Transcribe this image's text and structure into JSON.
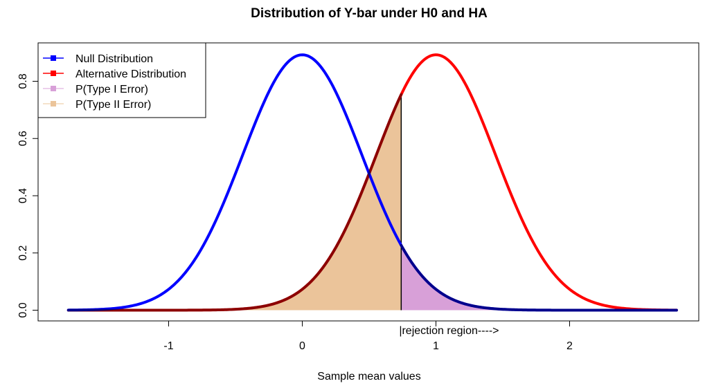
{
  "chart_data": {
    "type": "area",
    "title": "Distribution of Y-bar under H0 and HA",
    "xlabel": "Sample mean values",
    "ylabel": "",
    "xlim": [
      -1.75,
      2.8
    ],
    "ylim": [
      0.0,
      0.92
    ],
    "x_ticks": [
      -1,
      0,
      1,
      2
    ],
    "x_tick_labels": [
      "-1",
      "0",
      "1",
      "2"
    ],
    "y_ticks": [
      0.0,
      0.2,
      0.4,
      0.6,
      0.8
    ],
    "y_tick_labels": [
      "0.0",
      "0.2",
      "0.4",
      "0.6",
      "0.8"
    ],
    "grid": false,
    "legend_position": "top-left",
    "critical_value": 0.74,
    "series": [
      {
        "name": "Null Distribution",
        "kind": "line",
        "dist": "normal",
        "mean": 0,
        "sd": 0.447,
        "color": "#0000FF"
      },
      {
        "name": "Alternative Distribution",
        "kind": "line",
        "dist": "normal",
        "mean": 1,
        "sd": 0.447,
        "color": "#FF0000"
      },
      {
        "name": "P(Type I Error)",
        "kind": "shaded",
        "under": "Null Distribution",
        "from": 0.74,
        "to": 2.8,
        "color": "#D8A0D8"
      },
      {
        "name": "P(Type II Error)",
        "kind": "shaded",
        "under": "Alternative Distribution",
        "from": -1.75,
        "to": 0.74,
        "color": "#EBC49A"
      }
    ],
    "annotations": [
      {
        "text": "|rejection region---->",
        "x": 0.74
      }
    ]
  }
}
